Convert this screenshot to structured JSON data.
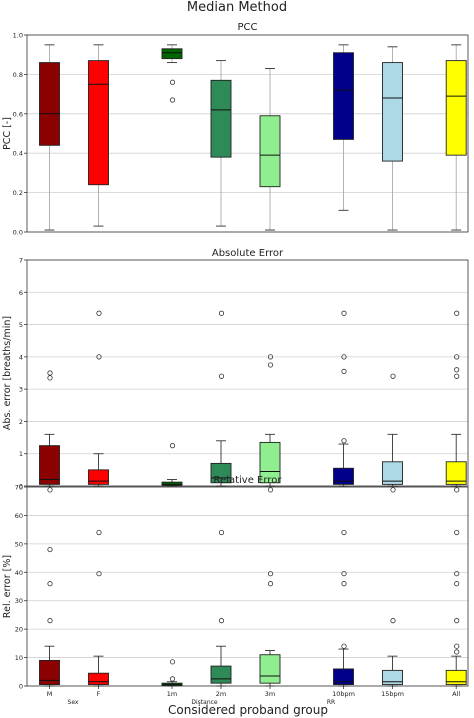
{
  "figure": {
    "title": "Median Method",
    "xlabel": "Considered proband group"
  },
  "x_labels": [
    "M",
    "F",
    "1m",
    "2m",
    "3m",
    "10bpm",
    "15bpm",
    "All"
  ],
  "group_labels": [
    {
      "text": "Sex",
      "pos": 0.5
    },
    {
      "text": "Distance",
      "pos": 3
    },
    {
      "text": "RR",
      "pos": 5.5
    }
  ],
  "colors": [
    "#8b0000",
    "#ff0000",
    "#006400",
    "#2e8b57",
    "#90ee90",
    "#00008b",
    "#add8e6",
    "#ffff00"
  ],
  "chart_data": [
    {
      "type": "box",
      "title": "PCC",
      "ylabel": "PCC [-]",
      "ylim": [
        0,
        1
      ],
      "yticks": [
        0.0,
        0.2,
        0.4,
        0.6,
        0.8,
        1.0
      ],
      "tick_format": "1",
      "categories": [
        "M",
        "F",
        "1m",
        "2m",
        "3m",
        "10bpm",
        "15bpm",
        "All"
      ],
      "boxes": [
        {
          "min": 0.01,
          "q1": 0.44,
          "median": 0.6,
          "q3": 0.86,
          "max": 0.95,
          "outliers": []
        },
        {
          "min": 0.03,
          "q1": 0.24,
          "median": 0.75,
          "q3": 0.87,
          "max": 0.95,
          "outliers": []
        },
        {
          "min": 0.86,
          "q1": 0.88,
          "median": 0.91,
          "q3": 0.93,
          "max": 0.95,
          "outliers": [
            0.76,
            0.67
          ]
        },
        {
          "min": 0.03,
          "q1": 0.38,
          "median": 0.62,
          "q3": 0.77,
          "max": 0.87,
          "outliers": []
        },
        {
          "min": 0.01,
          "q1": 0.23,
          "median": 0.39,
          "q3": 0.59,
          "max": 0.83,
          "outliers": []
        },
        {
          "min": 0.11,
          "q1": 0.47,
          "median": 0.72,
          "q3": 0.91,
          "max": 0.95,
          "outliers": []
        },
        {
          "min": 0.01,
          "q1": 0.36,
          "median": 0.68,
          "q3": 0.86,
          "max": 0.94,
          "outliers": []
        },
        {
          "min": 0.01,
          "q1": 0.39,
          "median": 0.69,
          "q3": 0.87,
          "max": 0.95,
          "outliers": []
        }
      ]
    },
    {
      "type": "box",
      "title": "Absolute Error",
      "ylabel": "Abs. error [breaths/min]",
      "ylim": [
        0,
        7
      ],
      "yticks": [
        0,
        1,
        2,
        3,
        4,
        5,
        6,
        7
      ],
      "tick_format": "0",
      "categories": [
        "M",
        "F",
        "1m",
        "2m",
        "3m",
        "10bpm",
        "15bpm",
        "All"
      ],
      "boxes": [
        {
          "min": 0.0,
          "q1": 0.05,
          "median": 0.2,
          "q3": 1.25,
          "max": 1.6,
          "outliers": [
            3.35,
            3.5
          ]
        },
        {
          "min": 0.0,
          "q1": 0.05,
          "median": 0.15,
          "q3": 0.5,
          "max": 1.0,
          "outliers": [
            5.35,
            4.0
          ]
        },
        {
          "min": 0.0,
          "q1": 0.02,
          "median": 0.05,
          "q3": 0.12,
          "max": 0.2,
          "outliers": [
            1.25
          ]
        },
        {
          "min": 0.0,
          "q1": 0.1,
          "median": 0.25,
          "q3": 0.7,
          "max": 1.4,
          "outliers": [
            5.35,
            3.4
          ]
        },
        {
          "min": 0.0,
          "q1": 0.1,
          "median": 0.45,
          "q3": 1.35,
          "max": 1.6,
          "outliers": [
            4.0,
            3.75
          ]
        },
        {
          "min": 0.0,
          "q1": 0.05,
          "median": 0.15,
          "q3": 0.55,
          "max": 1.3,
          "outliers": [
            1.4,
            5.35,
            4.0,
            3.55
          ]
        },
        {
          "min": 0.0,
          "q1": 0.05,
          "median": 0.15,
          "q3": 0.75,
          "max": 1.6,
          "outliers": [
            3.4
          ]
        },
        {
          "min": 0.0,
          "q1": 0.05,
          "median": 0.15,
          "q3": 0.75,
          "max": 1.6,
          "outliers": [
            5.35,
            4.0,
            3.6,
            3.4
          ]
        }
      ]
    },
    {
      "type": "box",
      "title": "Relative Error",
      "ylabel": "Rel. error [%]",
      "ylim": [
        0,
        70
      ],
      "yticks": [
        0,
        10,
        20,
        30,
        40,
        50,
        60,
        70
      ],
      "tick_format": "0",
      "categories": [
        "M",
        "F",
        "1m",
        "2m",
        "3m",
        "10bpm",
        "15bpm",
        "All"
      ],
      "boxes": [
        {
          "min": 0.0,
          "q1": 0.5,
          "median": 2.0,
          "q3": 9.0,
          "max": 14.0,
          "outliers": [
            69.0,
            48.0,
            36.0,
            23.0
          ]
        },
        {
          "min": 0.0,
          "q1": 0.5,
          "median": 1.5,
          "q3": 4.5,
          "max": 10.5,
          "outliers": [
            54.0,
            39.5
          ]
        },
        {
          "min": 0.0,
          "q1": 0.2,
          "median": 0.5,
          "q3": 1.0,
          "max": 1.5,
          "outliers": [
            8.5,
            2.5
          ]
        },
        {
          "min": 0.0,
          "q1": 1.0,
          "median": 2.5,
          "q3": 7.0,
          "max": 14.0,
          "outliers": [
            54.0,
            23.0
          ]
        },
        {
          "min": 0.0,
          "q1": 1.0,
          "median": 3.5,
          "q3": 11.0,
          "max": 12.5,
          "outliers": [
            69.0,
            39.5,
            36.0
          ]
        },
        {
          "min": 0.0,
          "q1": 0.5,
          "median": 1.5,
          "q3": 6.0,
          "max": 13.0,
          "outliers": [
            54.0,
            39.5,
            36.0,
            14.0
          ]
        },
        {
          "min": 0.0,
          "q1": 0.5,
          "median": 1.5,
          "q3": 5.5,
          "max": 10.5,
          "outliers": [
            69.0,
            23.0
          ]
        },
        {
          "min": 0.0,
          "q1": 0.5,
          "median": 1.5,
          "q3": 5.5,
          "max": 10.5,
          "outliers": [
            69.0,
            54.0,
            39.5,
            36.0,
            23.0,
            14.0,
            12.0
          ]
        }
      ]
    }
  ]
}
